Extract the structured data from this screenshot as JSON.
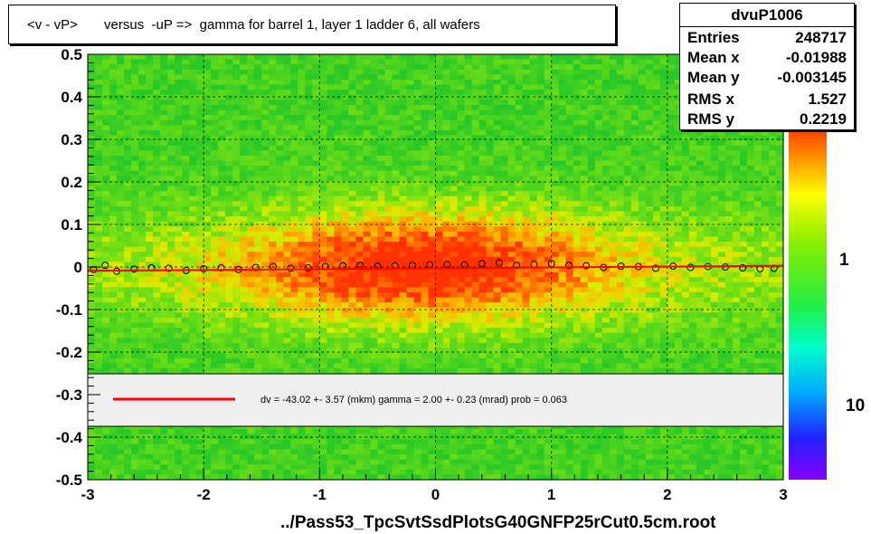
{
  "title": "<v - vP>       versus  -uP =>  gamma for barrel 1, layer 1 ladder 6, all wafers",
  "stats": {
    "name": "dvuP1006",
    "rows": [
      {
        "label": "Entries",
        "value": "248717"
      },
      {
        "label": "Mean x",
        "value": "-0.01988"
      },
      {
        "label": "Mean y",
        "value": "-0.003145"
      },
      {
        "label": "RMS x",
        "value": "1.527"
      },
      {
        "label": "RMS y",
        "value": "0.2219"
      }
    ]
  },
  "footer": "../Pass53_TpcSvtSsdPlotsG40GNFP25rCut0.5cm.root",
  "colors": {
    "fit_line": "#ff0000",
    "heat_low": "#22dd22",
    "heat_mid": "#ffff00",
    "heat_high": "#ff3300"
  },
  "chart_data": {
    "type": "heatmap",
    "xlim": [
      -3,
      3
    ],
    "ylim": [
      -0.5,
      0.5
    ],
    "x_ticks": [
      "-3",
      "-2",
      "-1",
      "0",
      "1",
      "2",
      "3"
    ],
    "y_ticks": [
      "-0.5",
      "-0.4",
      "-0.3",
      "-0.2",
      "-0.1",
      "0",
      "0.1",
      "0.2",
      "0.3",
      "0.4",
      "0.5"
    ],
    "grid": true,
    "colorbar_labels": [
      "1",
      "10"
    ],
    "legend": {
      "fit_label": "dv =  -43.02 +-  3.57 (mkm) gamma =    2.00 +-  0.23 (mrad) prob = 0.063"
    },
    "profile_points": [
      {
        "x": -2.95,
        "y": -0.006
      },
      {
        "x": -2.85,
        "y": 0.004
      },
      {
        "x": -2.75,
        "y": -0.01
      },
      {
        "x": -2.6,
        "y": -0.005
      },
      {
        "x": -2.45,
        "y": -0.002
      },
      {
        "x": -2.3,
        "y": -0.003
      },
      {
        "x": -2.15,
        "y": -0.008
      },
      {
        "x": -2.0,
        "y": -0.004
      },
      {
        "x": -1.85,
        "y": -0.002
      },
      {
        "x": -1.7,
        "y": -0.006
      },
      {
        "x": -1.55,
        "y": -0.001
      },
      {
        "x": -1.4,
        "y": 0.001
      },
      {
        "x": -1.25,
        "y": -0.003
      },
      {
        "x": -1.1,
        "y": -0.002
      },
      {
        "x": -0.95,
        "y": 0.001
      },
      {
        "x": -0.8,
        "y": 0.003
      },
      {
        "x": -0.65,
        "y": 0.004
      },
      {
        "x": -0.5,
        "y": 0.002
      },
      {
        "x": -0.35,
        "y": 0.003
      },
      {
        "x": -0.2,
        "y": 0.004
      },
      {
        "x": -0.05,
        "y": 0.005
      },
      {
        "x": 0.1,
        "y": 0.006
      },
      {
        "x": 0.25,
        "y": 0.005
      },
      {
        "x": 0.4,
        "y": 0.008
      },
      {
        "x": 0.55,
        "y": 0.01
      },
      {
        "x": 0.7,
        "y": 0.004
      },
      {
        "x": 0.85,
        "y": 0.006
      },
      {
        "x": 1.0,
        "y": 0.008
      },
      {
        "x": 1.15,
        "y": 0.004
      },
      {
        "x": 1.3,
        "y": 0.003
      },
      {
        "x": 1.45,
        "y": -0.001
      },
      {
        "x": 1.6,
        "y": 0.002
      },
      {
        "x": 1.75,
        "y": 0.001
      },
      {
        "x": 1.9,
        "y": -0.003
      },
      {
        "x": 2.05,
        "y": 0.002
      },
      {
        "x": 2.2,
        "y": -0.001
      },
      {
        "x": 2.35,
        "y": 0.001
      },
      {
        "x": 2.5,
        "y": 0.0
      },
      {
        "x": 2.65,
        "y": -0.002
      },
      {
        "x": 2.8,
        "y": -0.004
      },
      {
        "x": 2.92,
        "y": -0.003
      }
    ],
    "fit_line": {
      "x": [
        -3,
        3
      ],
      "y": [
        -0.009,
        0.003
      ]
    }
  }
}
